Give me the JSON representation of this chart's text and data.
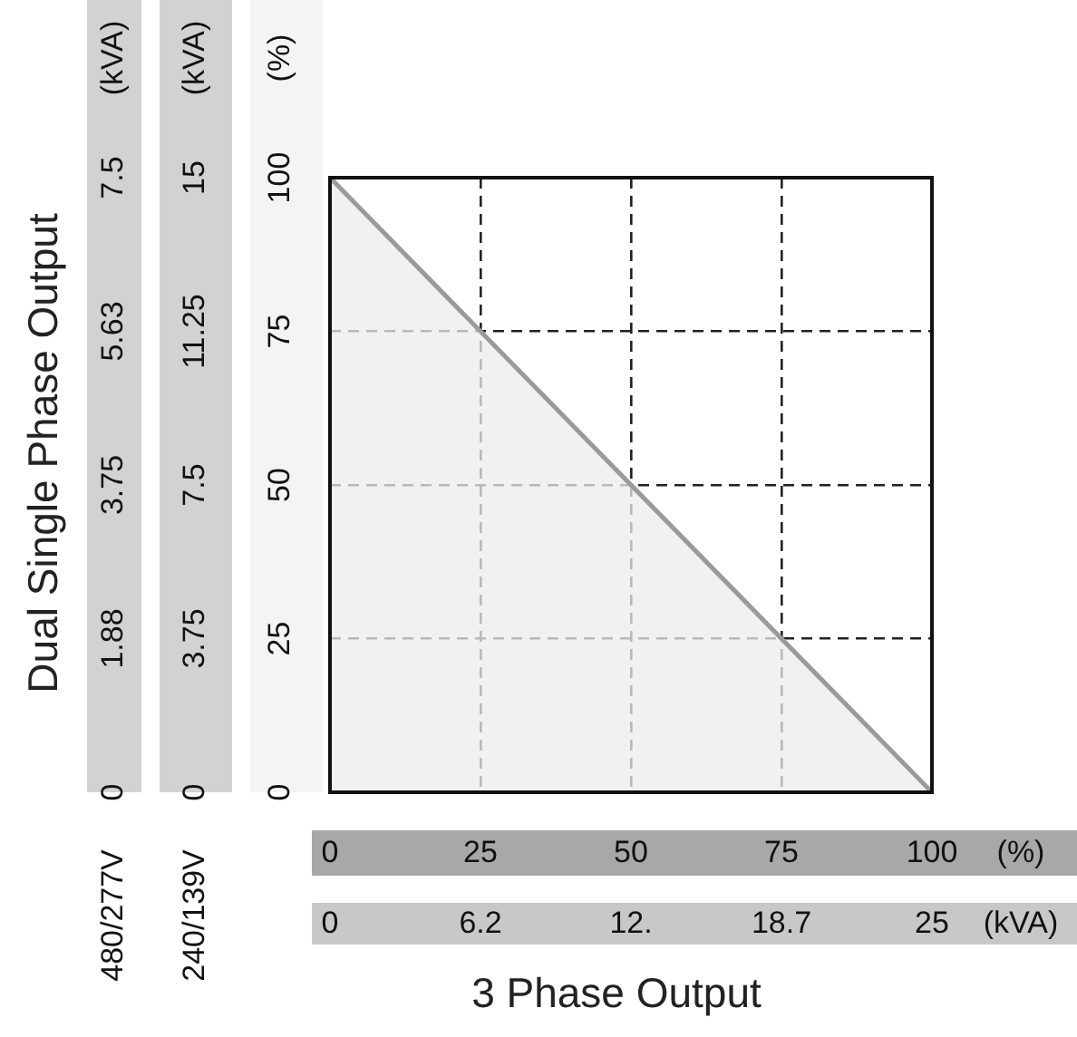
{
  "chart_data": {
    "type": "area",
    "xlabel": "3 Phase Output",
    "ylabel": "Dual Single Phase Output",
    "y2label": "240/139V",
    "x": [
      0,
      100
    ],
    "series": [
      {
        "color": "#9a9a9a",
        "values": [
          7.5,
          0
        ]
      }
    ],
    "xlim": [
      0,
      100
    ],
    "xticks": [
      0,
      25,
      50,
      75,
      100
    ],
    "ylim": [
      0,
      7.5
    ],
    "yticks": [
      0,
      {
        "value": 1.875,
        "label": "1.88"
      },
      3.75,
      {
        "value": 5.625,
        "label": "5.63"
      },
      7.5
    ],
    "x2lim": [
      0,
      25
    ],
    "x2ticks": [
      0,
      {
        "value": 6.25,
        "label": "6.2"
      },
      {
        "value": 12.5,
        "label": "12."
      },
      {
        "value": 18.75,
        "label": "18.7"
      },
      25
    ],
    "y2lim": [
      0,
      15
    ],
    "y2ticks": [
      0,
      3.75,
      7.5,
      11.25,
      15
    ],
    "y3lim": [
      0,
      100
    ],
    "y3ticks": [
      0,
      25,
      50,
      75,
      100
    ],
    "annotations": [
      "(kVA)",
      "(kVA)",
      "(%)",
      "(%)",
      "(kVA)",
      "480/277V"
    ],
    "grid": true,
    "line_style": "solid",
    "marker": "none",
    "legend": false
  }
}
